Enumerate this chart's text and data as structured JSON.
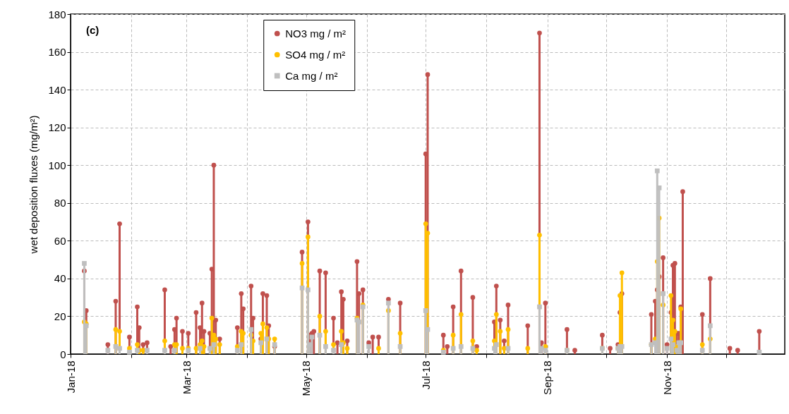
{
  "chart_data": {
    "type": "lollipop",
    "ylabel": "wet deposition fluxes (mg/m²)",
    "annotations": [
      "(c)"
    ],
    "x": [
      "2018-01-08",
      "2018-01-09",
      "2018-01-20",
      "2018-01-24",
      "2018-01-26",
      "2018-01-31",
      "2018-02-04",
      "2018-02-05",
      "2018-02-07",
      "2018-02-09",
      "2018-02-18",
      "2018-02-21",
      "2018-02-23",
      "2018-02-24",
      "2018-02-27",
      "2018-03-02",
      "2018-03-06",
      "2018-03-08",
      "2018-03-09",
      "2018-03-10",
      "2018-03-13",
      "2018-03-14",
      "2018-03-15",
      "2018-03-16",
      "2018-03-18",
      "2018-03-27",
      "2018-03-29",
      "2018-03-30",
      "2018-04-03",
      "2018-04-04",
      "2018-04-08",
      "2018-04-09",
      "2018-04-11",
      "2018-04-12",
      "2018-04-15",
      "2018-04-29",
      "2018-05-02",
      "2018-05-03",
      "2018-05-04",
      "2018-05-05",
      "2018-05-08",
      "2018-05-11",
      "2018-05-15",
      "2018-05-17",
      "2018-05-19",
      "2018-05-20",
      "2018-05-22",
      "2018-05-27",
      "2018-05-28",
      "2018-05-30",
      "2018-06-02",
      "2018-06-04",
      "2018-06-07",
      "2018-06-12",
      "2018-06-18",
      "2018-07-01",
      "2018-07-02",
      "2018-07-10",
      "2018-07-12",
      "2018-07-15",
      "2018-07-19",
      "2018-07-25",
      "2018-07-27",
      "2018-08-05",
      "2018-08-06",
      "2018-08-08",
      "2018-08-10",
      "2018-08-12",
      "2018-08-22",
      "2018-08-28",
      "2018-08-29",
      "2018-08-31",
      "2018-09-11",
      "2018-09-15",
      "2018-09-29",
      "2018-10-03",
      "2018-10-07",
      "2018-10-08",
      "2018-10-09",
      "2018-10-24",
      "2018-10-26",
      "2018-10-27",
      "2018-10-28",
      "2018-10-30",
      "2018-11-01",
      "2018-11-03",
      "2018-11-04",
      "2018-11-05",
      "2018-11-06",
      "2018-11-07",
      "2018-11-08",
      "2018-11-09",
      "2018-11-19",
      "2018-11-23",
      "2018-12-03",
      "2018-12-07",
      "2018-12-18"
    ],
    "series": [
      {
        "name": "NO3 mg / m²",
        "color": "#c0504d",
        "marker": "circle",
        "values": [
          44,
          23,
          5,
          28,
          69,
          9,
          25,
          14,
          5,
          6,
          34,
          4,
          13,
          19,
          12,
          11,
          22,
          14,
          27,
          12,
          11,
          45,
          100,
          18,
          8,
          14,
          32,
          24,
          36,
          19,
          8,
          32,
          31,
          15,
          4,
          54,
          70,
          10,
          11,
          12,
          44,
          43,
          19,
          6,
          33,
          29,
          7,
          49,
          32,
          34,
          6,
          9,
          9,
          29,
          27,
          106,
          148,
          10,
          4,
          25,
          44,
          30,
          4,
          17,
          36,
          18,
          7,
          26,
          15,
          170,
          6,
          27,
          13,
          2,
          10,
          3,
          5,
          22,
          32,
          21,
          28,
          34,
          41,
          51,
          5,
          22,
          47,
          48,
          11,
          11,
          25,
          86,
          21,
          40,
          3,
          2,
          12
        ]
      },
      {
        "name": "SO4 mg / m²",
        "color": "#ffc000",
        "marker": "circle",
        "values": [
          17,
          16,
          null,
          13,
          12,
          3,
          5,
          2,
          2,
          null,
          7,
          null,
          5,
          5,
          3,
          3,
          3,
          5,
          7,
          4,
          null,
          19,
          10,
          8,
          5,
          4,
          12,
          11,
          10,
          7,
          11,
          16,
          14,
          8,
          8,
          48,
          62,
          null,
          null,
          null,
          20,
          12,
          5,
          null,
          12,
          6,
          3,
          19,
          null,
          26,
          null,
          null,
          3,
          23,
          11,
          69,
          64,
          2,
          null,
          10,
          21,
          7,
          2,
          7,
          21,
          12,
          3,
          13,
          3,
          63,
          null,
          4,
          2,
          null,
          3,
          null,
          3,
          31,
          43,
          5,
          8,
          49,
          72,
          26,
          null,
          31,
          18,
          12,
          4,
          null,
          24,
          null,
          5,
          8,
          null,
          null,
          null
        ]
      },
      {
        "name": "Ca mg / m²",
        "color": "#bfbfbf",
        "marker": "square",
        "values": [
          48,
          15,
          2,
          4,
          3,
          1,
          2,
          null,
          null,
          2,
          2,
          null,
          2,
          null,
          null,
          2,
          null,
          3,
          null,
          null,
          3,
          null,
          5,
          null,
          null,
          2,
          5,
          null,
          13,
          null,
          6,
          null,
          8,
          null,
          5,
          35,
          34,
          5,
          9,
          null,
          10,
          4,
          2,
          null,
          5,
          null,
          null,
          18,
          17,
          25,
          4,
          null,
          null,
          27,
          4,
          23,
          13,
          1,
          null,
          3,
          4,
          3,
          null,
          3,
          5,
          null,
          null,
          3,
          null,
          25,
          3,
          2,
          2,
          null,
          3,
          null,
          3,
          4,
          4,
          5,
          6,
          97,
          88,
          32,
          3,
          8,
          5,
          null,
          2,
          6,
          6,
          null,
          2,
          15,
          null,
          null,
          1
        ]
      }
    ],
    "xlim": [
      "2018-01-01",
      "2018-12-31"
    ],
    "xticks": [
      {
        "value": "2018-01-01",
        "label": "Jan-18"
      },
      {
        "value": "2018-02-01",
        "label": null
      },
      {
        "value": "2018-03-01",
        "label": "Mar-18"
      },
      {
        "value": "2018-04-01",
        "label": null
      },
      {
        "value": "2018-05-01",
        "label": "May-18"
      },
      {
        "value": "2018-06-01",
        "label": null
      },
      {
        "value": "2018-07-01",
        "label": "Jul-18"
      },
      {
        "value": "2018-08-01",
        "label": null
      },
      {
        "value": "2018-09-01",
        "label": "Sep-18"
      },
      {
        "value": "2018-10-01",
        "label": null
      },
      {
        "value": "2018-11-01",
        "label": "Nov-18"
      },
      {
        "value": "2018-12-01",
        "label": null
      }
    ],
    "ylim": [
      0,
      180
    ],
    "yticks": [
      0,
      20,
      40,
      60,
      80,
      100,
      120,
      140,
      160,
      180
    ],
    "grid": true,
    "legend": "top"
  }
}
